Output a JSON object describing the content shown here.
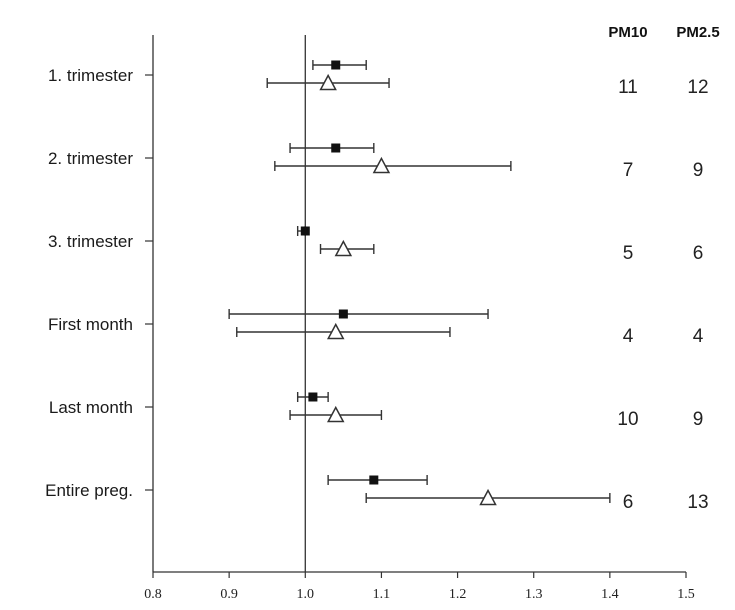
{
  "chart_data": {
    "type": "forest",
    "title": "",
    "xlabel": "",
    "ylabel": "",
    "xlim": [
      0.8,
      1.5
    ],
    "xticks": [
      0.8,
      0.9,
      1.0,
      1.1,
      1.2,
      1.3,
      1.4,
      1.5
    ],
    "xtick_labels": [
      "0.8",
      "0.9",
      "1.0",
      "1.1",
      "1.2",
      "1.3",
      "1.4",
      "1.5"
    ],
    "reference_line": 1.0,
    "categories": [
      "1. trimester",
      "2. trimester",
      "3. trimester",
      "First month",
      "Last month",
      "Entire preg."
    ],
    "series": [
      {
        "name": "PM10",
        "marker": "filled-square",
        "estimates": [
          1.04,
          1.04,
          1.0,
          1.05,
          1.01,
          1.09
        ],
        "lower": [
          1.01,
          0.98,
          0.99,
          0.9,
          0.99,
          1.03
        ],
        "upper": [
          1.08,
          1.09,
          1.0,
          1.24,
          1.03,
          1.16
        ],
        "counts": [
          "11",
          "7",
          "5",
          "4",
          "10",
          "6"
        ]
      },
      {
        "name": "PM2.5",
        "marker": "open-triangle",
        "estimates": [
          1.03,
          1.1,
          1.05,
          1.04,
          1.04,
          1.24
        ],
        "lower": [
          0.95,
          0.96,
          1.02,
          0.91,
          0.98,
          1.08
        ],
        "upper": [
          1.11,
          1.27,
          1.09,
          1.19,
          1.1,
          1.4
        ],
        "counts": [
          "12",
          "9",
          "6",
          "4",
          "9",
          "13"
        ]
      }
    ]
  }
}
